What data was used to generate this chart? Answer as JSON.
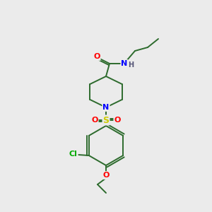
{
  "background_color": "#ebebeb",
  "bond_color": "#2d6b2d",
  "atom_colors": {
    "O": "#ff0000",
    "N": "#0000ff",
    "S": "#cccc00",
    "Cl": "#00aa00",
    "H": "#555577"
  },
  "figsize": [
    3.0,
    3.0
  ],
  "dpi": 100,
  "lw": 1.4
}
